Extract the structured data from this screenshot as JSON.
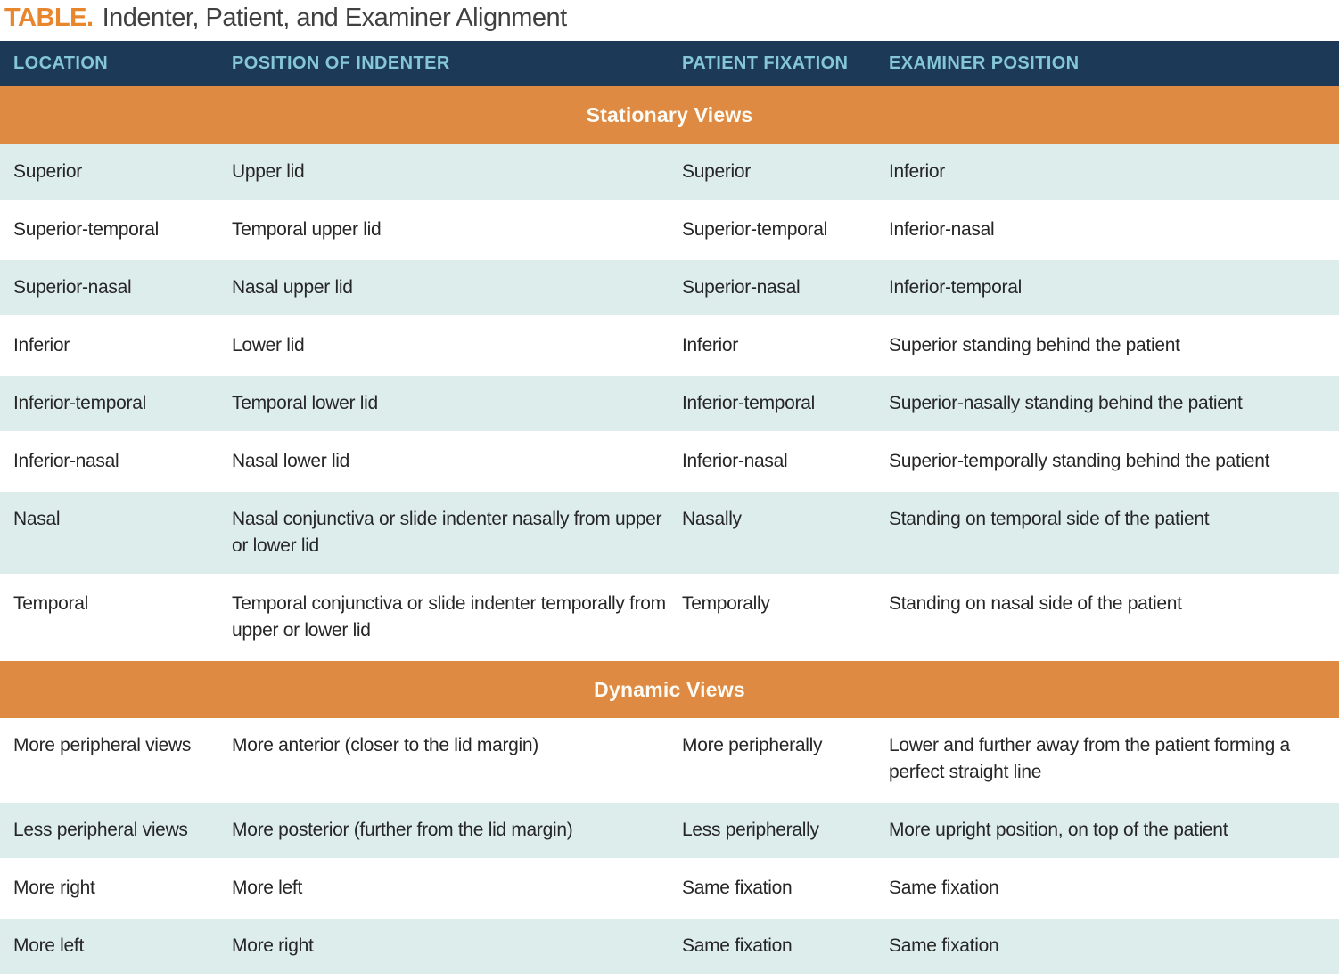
{
  "title": {
    "label": "TABLE.",
    "text": "Indenter, Patient, and Examiner Alignment"
  },
  "columns": [
    "LOCATION",
    "POSITION OF INDENTER",
    "PATIENT FIXATION",
    "EXAMINER POSITION"
  ],
  "colors": {
    "header_background": "#1c3a58",
    "header_text": "#85c6d8",
    "section_banner": "#de8a42",
    "title_accent": "#e8862d",
    "row_shade": "#ddedec",
    "body_text": "#262626"
  },
  "sections": [
    {
      "header": "Stationary Views",
      "first_row_shaded": true,
      "rows": [
        {
          "cells": [
            "Superior",
            "Upper lid",
            "Superior",
            "Inferior"
          ]
        },
        {
          "cells": [
            "Superior-temporal",
            "Temporal upper lid",
            "Superior-temporal",
            "Inferior-nasal"
          ]
        },
        {
          "cells": [
            "Superior-nasal",
            "Nasal upper lid",
            "Superior-nasal",
            "Inferior-temporal"
          ]
        },
        {
          "cells": [
            "Inferior",
            "Lower lid",
            "Inferior",
            "Superior standing behind the patient"
          ]
        },
        {
          "cells": [
            "Inferior-temporal",
            "Temporal lower lid",
            "Inferior-temporal",
            "Superior-nasally standing behind the patient"
          ]
        },
        {
          "cells": [
            "Inferior-nasal",
            "Nasal lower lid",
            "Inferior-nasal",
            "Superior-temporally standing behind the patient"
          ]
        },
        {
          "cells": [
            "Nasal",
            "Nasal conjunctiva or slide indenter nasally from upper or lower lid",
            "Nasally",
            "Standing on temporal side of the patient"
          ]
        },
        {
          "cells": [
            "Temporal",
            "Temporal conjunctiva or slide indenter temporally from upper or lower lid",
            "Temporally",
            "Standing on nasal side of the patient"
          ]
        }
      ]
    },
    {
      "header": "Dynamic Views",
      "first_row_shaded": false,
      "rows": [
        {
          "cells": [
            "More peripheral views",
            "More anterior (closer to the lid margin)",
            "More peripherally",
            "Lower and further away from the patient forming a perfect straight line"
          ]
        },
        {
          "cells": [
            "Less peripheral views",
            "More posterior (further from the lid margin)",
            "Less peripherally",
            "More upright position, on top of the patient"
          ]
        },
        {
          "cells": [
            "More right",
            "More left",
            "Same fixation",
            "Same fixation"
          ]
        },
        {
          "cells": [
            "More left",
            "More right",
            "Same fixation",
            "Same fixation"
          ]
        }
      ]
    }
  ]
}
